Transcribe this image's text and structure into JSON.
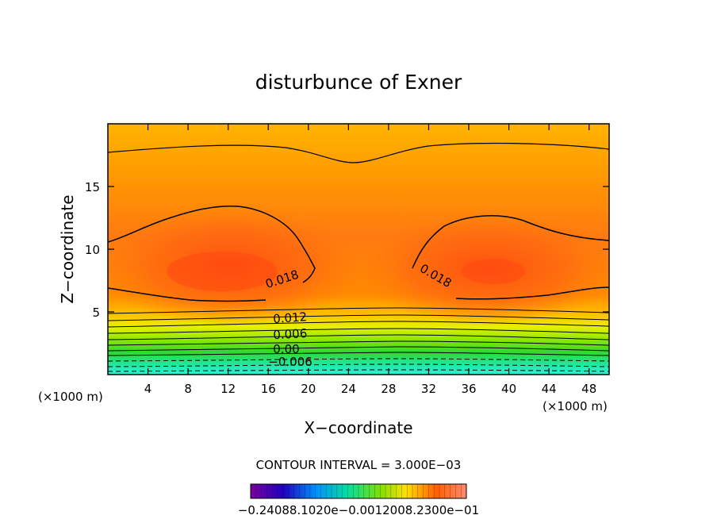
{
  "chart_data": {
    "type": "contour",
    "title": "disturbunce of Exner",
    "xlabel": "X−coordinate",
    "ylabel": "Z−coordinate",
    "x_unit_left": "(×1000 m)",
    "x_unit_right": "(×1000 m)",
    "xlim": [
      0,
      50
    ],
    "ylim": [
      0,
      20
    ],
    "x_ticks": [
      4,
      8,
      12,
      16,
      20,
      24,
      28,
      32,
      36,
      40,
      44,
      48
    ],
    "x_tick_labels": [
      "4",
      "8",
      "12",
      "16",
      "20",
      "24",
      "28",
      "32",
      "36",
      "40",
      "44",
      "48"
    ],
    "y_ticks": [
      5,
      10,
      15
    ],
    "y_tick_labels": [
      "5",
      "10",
      "15"
    ],
    "contour_labels": [
      {
        "text": "0.018",
        "x": 17.5,
        "z": 7.3,
        "angle": -18
      },
      {
        "text": "0.018",
        "x": 32.5,
        "z": 7.6,
        "angle": 30
      },
      {
        "text": "0.012",
        "x": 18.2,
        "z": 4.2,
        "angle": -4
      },
      {
        "text": "0.006",
        "x": 18.2,
        "z": 2.9,
        "angle": -3
      },
      {
        "text": "0.00",
        "x": 17.8,
        "z": 1.7,
        "angle": 0
      },
      {
        "text": "−0.006",
        "x": 18.2,
        "z": 0.7,
        "angle": 0
      }
    ],
    "contour_interval_text": "CONTOUR INTERVAL = 3.000E−03",
    "colorbar_labels": "−0.24088.1020e−0.0012008.2300e−01",
    "colorbar_range": [
      -0.024,
      0.024
    ]
  }
}
